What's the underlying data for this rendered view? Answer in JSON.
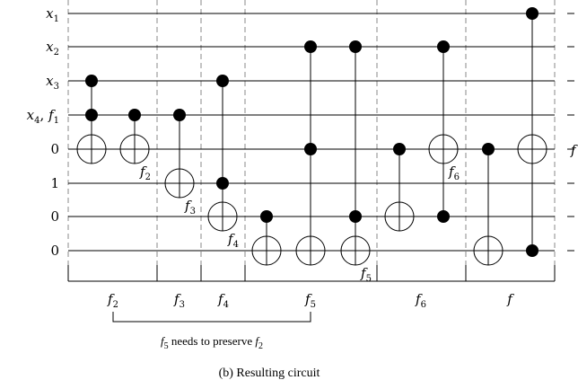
{
  "wire_labels": [
    {
      "base": "x",
      "sub": "1",
      "italic": true
    },
    {
      "base": "x",
      "sub": "2",
      "italic": true
    },
    {
      "base": "x",
      "sub": "3",
      "italic": true
    },
    {
      "base": "x",
      "sub": "4",
      "italic": true,
      "extra_base": "f",
      "extra_sub": "1"
    },
    {
      "base": "0",
      "italic": false
    },
    {
      "base": "1",
      "italic": false
    },
    {
      "base": "0",
      "italic": false
    },
    {
      "base": "0",
      "italic": false
    }
  ],
  "gates": [
    {
      "col": 102,
      "controls": [
        2,
        3
      ],
      "target": 4,
      "label": null
    },
    {
      "col": 150,
      "controls": [
        3
      ],
      "target": 4,
      "label": {
        "base": "f",
        "sub": "2"
      }
    },
    {
      "col": 200,
      "controls": [
        3
      ],
      "target": 5,
      "label": {
        "base": "f",
        "sub": "3"
      }
    },
    {
      "col": 248,
      "controls": [
        2,
        5
      ],
      "target": 6,
      "label": {
        "base": "f",
        "sub": "4"
      }
    },
    {
      "col": 297,
      "controls": [
        6
      ],
      "target": 7,
      "label": null
    },
    {
      "col": 346,
      "controls": [
        1,
        4
      ],
      "target": 7,
      "label": null
    },
    {
      "col": 396,
      "controls": [
        1,
        6
      ],
      "target": 7,
      "label": {
        "base": "f",
        "sub": "5"
      }
    },
    {
      "col": 445,
      "controls": [
        4
      ],
      "target": 6,
      "label": null
    },
    {
      "col": 494,
      "controls": [
        1,
        6
      ],
      "target": 4,
      "label": {
        "base": "f",
        "sub": "6"
      }
    },
    {
      "col": 544,
      "controls": [
        4
      ],
      "target": 7,
      "label": null
    },
    {
      "col": 593,
      "controls": [
        0,
        7
      ],
      "target": 4,
      "label": null
    }
  ],
  "sections": [
    {
      "base": "f",
      "sub": "2"
    },
    {
      "base": "f",
      "sub": "3"
    },
    {
      "base": "f",
      "sub": "4"
    },
    {
      "base": "f",
      "sub": "5"
    },
    {
      "base": "f",
      "sub": "6"
    },
    {
      "base": "f",
      "sub": ""
    }
  ],
  "output_label": {
    "base": "f"
  },
  "brace_note": {
    "text_before": "",
    "f_base": "f",
    "f_sub": "5",
    "text_mid": " needs to preserve ",
    "f2_base": "f",
    "f2_sub": "2"
  },
  "caption": "(b) Resulting circuit"
}
